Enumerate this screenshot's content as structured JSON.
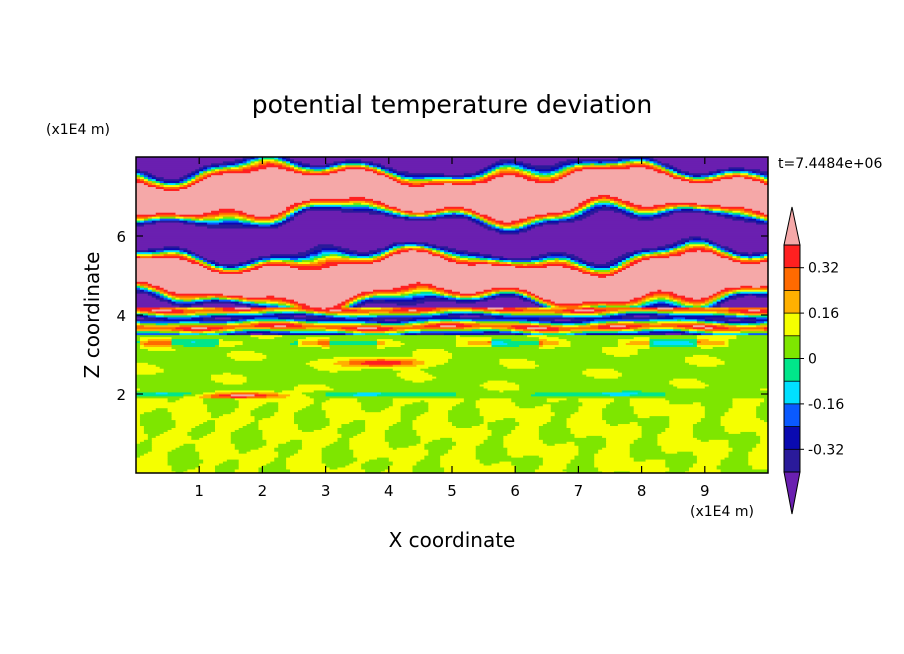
{
  "chart_data": {
    "type": "heatmap",
    "title": "potential temperature deviation",
    "xlabel": "X coordinate",
    "ylabel": "Z coordinate",
    "x_unit": "(x1E4 m)",
    "y_unit": "(x1E4 m)",
    "time_label": "t=7.4484e+06",
    "xlim": [
      0,
      10
    ],
    "ylim": [
      0,
      8
    ],
    "x_ticks": [
      1,
      2,
      3,
      4,
      5,
      6,
      7,
      8,
      9
    ],
    "y_ticks": [
      2,
      4,
      6
    ],
    "colorbar": {
      "levels": [
        -0.4,
        -0.32,
        -0.24,
        -0.16,
        -0.08,
        0,
        0.08,
        0.16,
        0.24,
        0.32,
        0.4
      ],
      "colors": [
        "#6a1fb0",
        "#2a1a9a",
        "#0a0ab0",
        "#0a5aff",
        "#00e0ff",
        "#00e68a",
        "#7ee600",
        "#f5ff00",
        "#ffb000",
        "#ff6a00",
        "#ff2020",
        "#f5a8a8"
      ],
      "labels": [
        "0.32",
        "0.16",
        "0",
        "-0.16",
        "-0.32"
      ],
      "extend": "both"
    },
    "field_regions": [
      {
        "z_range": [
          0,
          1.9
        ],
        "dominant": [
          0.05,
          0.12
        ]
      },
      {
        "z_range": [
          1.9,
          3.5
        ],
        "dominant": [
          0.02,
          0.1
        ]
      },
      {
        "z_range": [
          3.5,
          4.2
        ],
        "dominant": [
          -0.35,
          0.4
        ]
      },
      {
        "z_range": [
          4.2,
          8
        ],
        "dominant": [
          -0.45,
          0.45
        ]
      }
    ]
  }
}
